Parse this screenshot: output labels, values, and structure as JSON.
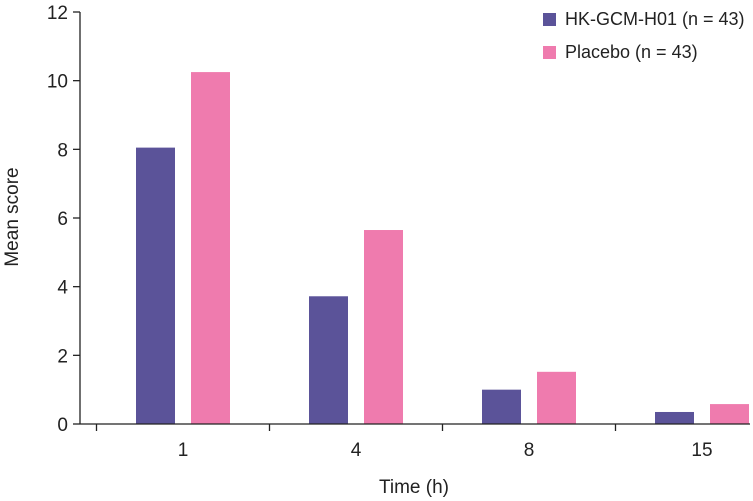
{
  "chart_data": {
    "type": "bar",
    "categories": [
      "1",
      "4",
      "8",
      "15"
    ],
    "series": [
      {
        "name": "HK-GCM-H01 (n = 43)",
        "values": [
          8.05,
          3.72,
          1.0,
          0.35
        ],
        "color": "#5b5399"
      },
      {
        "name": "Placebo (n = 43)",
        "values": [
          10.25,
          5.65,
          1.52,
          0.58
        ],
        "color": "#ef7bae"
      }
    ],
    "title": "",
    "xlabel": "Time (h)",
    "ylabel": "Mean score",
    "ylim": [
      0,
      12
    ],
    "yticks": [
      "0",
      "2",
      "4",
      "6",
      "8",
      "10",
      "12"
    ],
    "grid": false,
    "legend_position": "top-right"
  }
}
